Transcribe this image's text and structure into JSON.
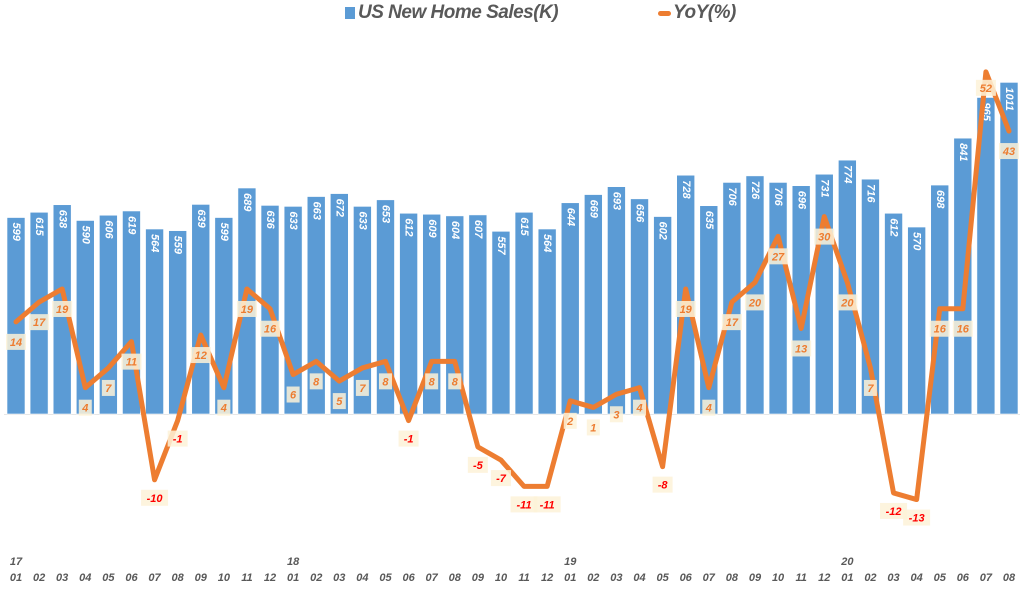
{
  "legend": {
    "bar_label": "US New Home Sales(K)",
    "line_label": "YoY(%)"
  },
  "colors": {
    "bar": "#5b9bd5",
    "line": "#ed7d31",
    "line_label_positive": "#ed7d31",
    "line_label_negative": "#ff0000",
    "label_box": "#fdf2d8",
    "axis_text": "#595959"
  },
  "chart_data": {
    "type": "bar+line",
    "title": "",
    "xlabel": "",
    "ylabel": "",
    "legend_position": "top",
    "grid": false,
    "categories": [
      "17-01",
      "17-02",
      "17-03",
      "17-04",
      "17-05",
      "17-06",
      "17-07",
      "17-08",
      "17-09",
      "17-10",
      "17-11",
      "17-12",
      "18-01",
      "18-02",
      "18-03",
      "18-04",
      "18-05",
      "18-06",
      "18-07",
      "18-08",
      "18-09",
      "18-10",
      "18-11",
      "18-12",
      "19-01",
      "19-02",
      "19-03",
      "19-04",
      "19-05",
      "19-06",
      "19-07",
      "19-08",
      "19-09",
      "19-10",
      "19-11",
      "19-12",
      "20-01",
      "20-02",
      "20-03",
      "20-04",
      "20-05",
      "20-06",
      "20-07",
      "20-08"
    ],
    "month_labels": [
      "01",
      "02",
      "03",
      "04",
      "05",
      "06",
      "07",
      "08",
      "09",
      "10",
      "11",
      "12",
      "01",
      "02",
      "03",
      "04",
      "05",
      "06",
      "07",
      "08",
      "09",
      "10",
      "11",
      "12",
      "01",
      "02",
      "03",
      "04",
      "05",
      "06",
      "07",
      "08",
      "09",
      "10",
      "11",
      "12",
      "01",
      "02",
      "03",
      "04",
      "05",
      "06",
      "07",
      "08"
    ],
    "year_labels": [
      {
        "index": 0,
        "label": "17"
      },
      {
        "index": 12,
        "label": "18"
      },
      {
        "index": 24,
        "label": "19"
      },
      {
        "index": 36,
        "label": "20"
      }
    ],
    "series": [
      {
        "name": "US New Home Sales(K)",
        "type": "bar",
        "values": [
          599,
          615,
          638,
          590,
          606,
          619,
          564,
          559,
          639,
          599,
          689,
          636,
          633,
          663,
          672,
          633,
          653,
          612,
          609,
          604,
          607,
          557,
          615,
          564,
          644,
          669,
          693,
          656,
          602,
          728,
          635,
          706,
          726,
          706,
          696,
          731,
          774,
          716,
          612,
          570,
          698,
          841,
          965,
          1011
        ]
      },
      {
        "name": "YoY(%)",
        "type": "line",
        "values": [
          14,
          17,
          19,
          4,
          7,
          11,
          -10,
          -1,
          12,
          4,
          19,
          16,
          6,
          8,
          5,
          7,
          8,
          -1,
          8,
          8,
          -5,
          -7,
          -11,
          -11,
          2,
          1,
          3,
          4,
          -8,
          19,
          4,
          17,
          20,
          27,
          13,
          30,
          20,
          7,
          -12,
          -13,
          16,
          16,
          52,
          43
        ]
      }
    ]
  }
}
